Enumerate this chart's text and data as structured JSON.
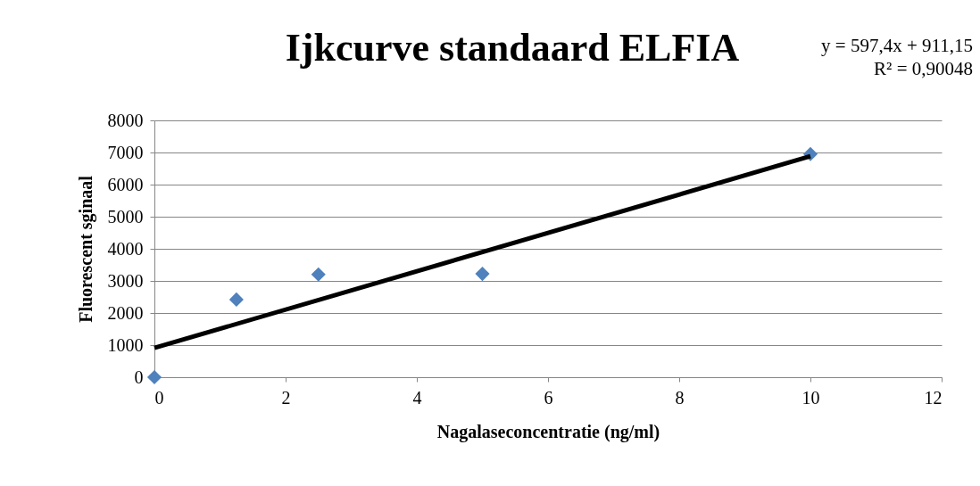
{
  "chart_data": {
    "type": "scatter",
    "title": "Ijkcurve standaard ELFIA",
    "xlabel": "Nagalaseconcentratie (ng/ml)",
    "ylabel": "Fluorescent sginaal",
    "annotations": [
      "y = 597,4x + 911,15",
      "R² = 0,90048"
    ],
    "x": [
      0,
      1.25,
      2.5,
      5,
      10
    ],
    "series": [
      {
        "color": "#4f81bd",
        "marker": "diamond",
        "values": [
          0,
          2420,
          3200,
          3220,
          6950
        ]
      },
      {
        "type": "line",
        "color": "#000000",
        "x": [
          0,
          10
        ],
        "values": [
          911,
          6885
        ]
      }
    ],
    "xlim": [
      0,
      12
    ],
    "xticks": [
      0,
      2,
      4,
      6,
      8,
      10,
      12
    ],
    "ylim": [
      0,
      8000
    ],
    "yticks": [
      0,
      1000,
      2000,
      3000,
      4000,
      5000,
      6000,
      7000,
      8000
    ],
    "grid": "y"
  }
}
